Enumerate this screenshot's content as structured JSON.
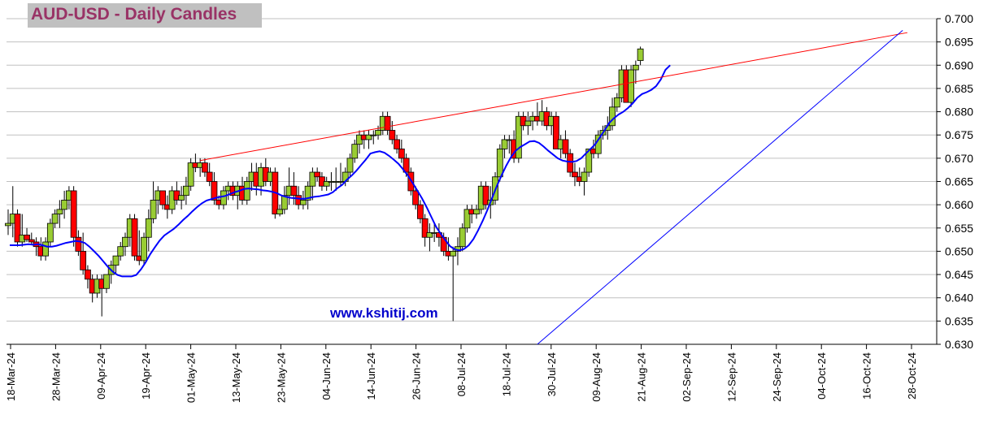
{
  "title": "AUD-USD - Daily Candles",
  "watermark": "www.kshitij.com",
  "colors": {
    "up_candle": "#99cc33",
    "down_candle": "#ff0000",
    "moving_average": "#0000ff",
    "resistance_line": "#ff0000",
    "support_line": "#0000ff",
    "grid": "#c0c0c0",
    "title_bg": "#c0c0c0",
    "title_text": "#993366"
  },
  "chart_data": {
    "type": "candlestick",
    "title": "AUD-USD - Daily Candles",
    "ylim": [
      0.63,
      0.7
    ],
    "y_ticks": [
      "0.630",
      "0.635",
      "0.640",
      "0.645",
      "0.650",
      "0.655",
      "0.660",
      "0.665",
      "0.670",
      "0.675",
      "0.680",
      "0.685",
      "0.690",
      "0.695",
      "0.700"
    ],
    "x_ticks": [
      "18-Mar-24",
      "28-Mar-24",
      "09-Apr-24",
      "19-Apr-24",
      "01-May-24",
      "13-May-24",
      "23-May-24",
      "04-Jun-24",
      "14-Jun-24",
      "26-Jun-24",
      "08-Jul-24",
      "18-Jul-24",
      "30-Jul-24",
      "09-Aug-24",
      "21-Aug-24",
      "02-Sep-24",
      "12-Sep-24",
      "24-Sep-24",
      "04-Oct-24",
      "16-Oct-24",
      "28-Oct-24"
    ],
    "grid": "horizontal",
    "candles": [
      {
        "o": 0.6555,
        "h": 0.659,
        "l": 0.6535,
        "c": 0.656
      },
      {
        "o": 0.656,
        "h": 0.664,
        "l": 0.653,
        "c": 0.658
      },
      {
        "o": 0.658,
        "h": 0.659,
        "l": 0.651,
        "c": 0.652
      },
      {
        "o": 0.652,
        "h": 0.658,
        "l": 0.651,
        "c": 0.6535
      },
      {
        "o": 0.6535,
        "h": 0.655,
        "l": 0.652,
        "c": 0.6525
      },
      {
        "o": 0.6525,
        "h": 0.654,
        "l": 0.6515,
        "c": 0.652
      },
      {
        "o": 0.652,
        "h": 0.653,
        "l": 0.649,
        "c": 0.651
      },
      {
        "o": 0.651,
        "h": 0.653,
        "l": 0.648,
        "c": 0.649
      },
      {
        "o": 0.649,
        "h": 0.653,
        "l": 0.648,
        "c": 0.652
      },
      {
        "o": 0.652,
        "h": 0.657,
        "l": 0.651,
        "c": 0.656
      },
      {
        "o": 0.656,
        "h": 0.659,
        "l": 0.655,
        "c": 0.658
      },
      {
        "o": 0.658,
        "h": 0.661,
        "l": 0.655,
        "c": 0.659
      },
      {
        "o": 0.659,
        "h": 0.663,
        "l": 0.657,
        "c": 0.661
      },
      {
        "o": 0.661,
        "h": 0.664,
        "l": 0.659,
        "c": 0.663
      },
      {
        "o": 0.663,
        "h": 0.664,
        "l": 0.651,
        "c": 0.653
      },
      {
        "o": 0.653,
        "h": 0.6545,
        "l": 0.649,
        "c": 0.65
      },
      {
        "o": 0.65,
        "h": 0.654,
        "l": 0.645,
        "c": 0.646
      },
      {
        "o": 0.646,
        "h": 0.647,
        "l": 0.642,
        "c": 0.644
      },
      {
        "o": 0.644,
        "h": 0.645,
        "l": 0.639,
        "c": 0.641
      },
      {
        "o": 0.641,
        "h": 0.645,
        "l": 0.64,
        "c": 0.644
      },
      {
        "o": 0.644,
        "h": 0.645,
        "l": 0.636,
        "c": 0.642
      },
      {
        "o": 0.642,
        "h": 0.645,
        "l": 0.641,
        "c": 0.645
      },
      {
        "o": 0.645,
        "h": 0.648,
        "l": 0.643,
        "c": 0.647
      },
      {
        "o": 0.647,
        "h": 0.649,
        "l": 0.645,
        "c": 0.649
      },
      {
        "o": 0.649,
        "h": 0.652,
        "l": 0.648,
        "c": 0.651
      },
      {
        "o": 0.651,
        "h": 0.654,
        "l": 0.649,
        "c": 0.653
      },
      {
        "o": 0.653,
        "h": 0.658,
        "l": 0.651,
        "c": 0.657
      },
      {
        "o": 0.657,
        "h": 0.658,
        "l": 0.648,
        "c": 0.649
      },
      {
        "o": 0.649,
        "h": 0.6545,
        "l": 0.647,
        "c": 0.648
      },
      {
        "o": 0.648,
        "h": 0.654,
        "l": 0.647,
        "c": 0.653
      },
      {
        "o": 0.653,
        "h": 0.659,
        "l": 0.65,
        "c": 0.657
      },
      {
        "o": 0.657,
        "h": 0.665,
        "l": 0.656,
        "c": 0.661
      },
      {
        "o": 0.661,
        "h": 0.664,
        "l": 0.658,
        "c": 0.663
      },
      {
        "o": 0.663,
        "h": 0.663,
        "l": 0.659,
        "c": 0.66
      },
      {
        "o": 0.66,
        "h": 0.662,
        "l": 0.657,
        "c": 0.659
      },
      {
        "o": 0.659,
        "h": 0.664,
        "l": 0.658,
        "c": 0.663
      },
      {
        "o": 0.663,
        "h": 0.665,
        "l": 0.66,
        "c": 0.661
      },
      {
        "o": 0.661,
        "h": 0.664,
        "l": 0.659,
        "c": 0.662
      },
      {
        "o": 0.662,
        "h": 0.666,
        "l": 0.66,
        "c": 0.664
      },
      {
        "o": 0.664,
        "h": 0.67,
        "l": 0.663,
        "c": 0.669
      },
      {
        "o": 0.669,
        "h": 0.671,
        "l": 0.667,
        "c": 0.668
      },
      {
        "o": 0.668,
        "h": 0.67,
        "l": 0.666,
        "c": 0.669
      },
      {
        "o": 0.669,
        "h": 0.67,
        "l": 0.666,
        "c": 0.667
      },
      {
        "o": 0.667,
        "h": 0.669,
        "l": 0.664,
        "c": 0.665
      },
      {
        "o": 0.665,
        "h": 0.667,
        "l": 0.66,
        "c": 0.661
      },
      {
        "o": 0.661,
        "h": 0.662,
        "l": 0.659,
        "c": 0.66
      },
      {
        "o": 0.66,
        "h": 0.664,
        "l": 0.659,
        "c": 0.663
      },
      {
        "o": 0.663,
        "h": 0.665,
        "l": 0.661,
        "c": 0.664
      },
      {
        "o": 0.664,
        "h": 0.665,
        "l": 0.661,
        "c": 0.662
      },
      {
        "o": 0.662,
        "h": 0.665,
        "l": 0.659,
        "c": 0.664
      },
      {
        "o": 0.664,
        "h": 0.666,
        "l": 0.66,
        "c": 0.661
      },
      {
        "o": 0.661,
        "h": 0.666,
        "l": 0.66,
        "c": 0.665
      },
      {
        "o": 0.665,
        "h": 0.669,
        "l": 0.663,
        "c": 0.667
      },
      {
        "o": 0.667,
        "h": 0.669,
        "l": 0.662,
        "c": 0.664
      },
      {
        "o": 0.664,
        "h": 0.669,
        "l": 0.662,
        "c": 0.668
      },
      {
        "o": 0.668,
        "h": 0.67,
        "l": 0.664,
        "c": 0.665
      },
      {
        "o": 0.665,
        "h": 0.668,
        "l": 0.664,
        "c": 0.667
      },
      {
        "o": 0.667,
        "h": 0.668,
        "l": 0.657,
        "c": 0.658
      },
      {
        "o": 0.658,
        "h": 0.66,
        "l": 0.6575,
        "c": 0.659
      },
      {
        "o": 0.659,
        "h": 0.664,
        "l": 0.658,
        "c": 0.662
      },
      {
        "o": 0.662,
        "h": 0.668,
        "l": 0.66,
        "c": 0.664
      },
      {
        "o": 0.664,
        "h": 0.667,
        "l": 0.66,
        "c": 0.662
      },
      {
        "o": 0.662,
        "h": 0.664,
        "l": 0.659,
        "c": 0.66
      },
      {
        "o": 0.66,
        "h": 0.663,
        "l": 0.659,
        "c": 0.661
      },
      {
        "o": 0.661,
        "h": 0.665,
        "l": 0.659,
        "c": 0.664
      },
      {
        "o": 0.664,
        "h": 0.668,
        "l": 0.661,
        "c": 0.667
      },
      {
        "o": 0.667,
        "h": 0.668,
        "l": 0.665,
        "c": 0.666
      },
      {
        "o": 0.666,
        "h": 0.667,
        "l": 0.663,
        "c": 0.664
      },
      {
        "o": 0.664,
        "h": 0.666,
        "l": 0.663,
        "c": 0.665
      },
      {
        "o": 0.665,
        "h": 0.667,
        "l": 0.663,
        "c": 0.665
      },
      {
        "o": 0.665,
        "h": 0.668,
        "l": 0.663,
        "c": 0.665
      },
      {
        "o": 0.665,
        "h": 0.669,
        "l": 0.664,
        "c": 0.665
      },
      {
        "o": 0.665,
        "h": 0.668,
        "l": 0.664,
        "c": 0.667
      },
      {
        "o": 0.667,
        "h": 0.671,
        "l": 0.666,
        "c": 0.67
      },
      {
        "o": 0.67,
        "h": 0.674,
        "l": 0.669,
        "c": 0.673
      },
      {
        "o": 0.673,
        "h": 0.676,
        "l": 0.671,
        "c": 0.675
      },
      {
        "o": 0.675,
        "h": 0.676,
        "l": 0.672,
        "c": 0.674
      },
      {
        "o": 0.674,
        "h": 0.676,
        "l": 0.672,
        "c": 0.675
      },
      {
        "o": 0.675,
        "h": 0.676,
        "l": 0.673,
        "c": 0.675
      },
      {
        "o": 0.675,
        "h": 0.677,
        "l": 0.674,
        "c": 0.676
      },
      {
        "o": 0.676,
        "h": 0.68,
        "l": 0.675,
        "c": 0.679
      },
      {
        "o": 0.679,
        "h": 0.68,
        "l": 0.675,
        "c": 0.676
      },
      {
        "o": 0.676,
        "h": 0.678,
        "l": 0.673,
        "c": 0.674
      },
      {
        "o": 0.674,
        "h": 0.675,
        "l": 0.671,
        "c": 0.672
      },
      {
        "o": 0.672,
        "h": 0.674,
        "l": 0.669,
        "c": 0.67
      },
      {
        "o": 0.67,
        "h": 0.671,
        "l": 0.666,
        "c": 0.667
      },
      {
        "o": 0.667,
        "h": 0.668,
        "l": 0.662,
        "c": 0.663
      },
      {
        "o": 0.663,
        "h": 0.664,
        "l": 0.659,
        "c": 0.66
      },
      {
        "o": 0.66,
        "h": 0.661,
        "l": 0.656,
        "c": 0.657
      },
      {
        "o": 0.657,
        "h": 0.658,
        "l": 0.651,
        "c": 0.653
      },
      {
        "o": 0.653,
        "h": 0.656,
        "l": 0.65,
        "c": 0.654
      },
      {
        "o": 0.654,
        "h": 0.656,
        "l": 0.652,
        "c": 0.654
      },
      {
        "o": 0.654,
        "h": 0.656,
        "l": 0.651,
        "c": 0.653
      },
      {
        "o": 0.653,
        "h": 0.654,
        "l": 0.649,
        "c": 0.65
      },
      {
        "o": 0.65,
        "h": 0.653,
        "l": 0.648,
        "c": 0.649
      },
      {
        "o": 0.649,
        "h": 0.651,
        "l": 0.635,
        "c": 0.65
      },
      {
        "o": 0.65,
        "h": 0.653,
        "l": 0.647,
        "c": 0.651
      },
      {
        "o": 0.651,
        "h": 0.656,
        "l": 0.65,
        "c": 0.655
      },
      {
        "o": 0.655,
        "h": 0.66,
        "l": 0.654,
        "c": 0.659
      },
      {
        "o": 0.659,
        "h": 0.66,
        "l": 0.656,
        "c": 0.658
      },
      {
        "o": 0.658,
        "h": 0.66,
        "l": 0.657,
        "c": 0.659
      },
      {
        "o": 0.659,
        "h": 0.665,
        "l": 0.658,
        "c": 0.664
      },
      {
        "o": 0.664,
        "h": 0.665,
        "l": 0.659,
        "c": 0.66
      },
      {
        "o": 0.66,
        "h": 0.664,
        "l": 0.657,
        "c": 0.661
      },
      {
        "o": 0.661,
        "h": 0.667,
        "l": 0.66,
        "c": 0.666
      },
      {
        "o": 0.666,
        "h": 0.673,
        "l": 0.665,
        "c": 0.672
      },
      {
        "o": 0.672,
        "h": 0.675,
        "l": 0.67,
        "c": 0.674
      },
      {
        "o": 0.674,
        "h": 0.675,
        "l": 0.671,
        "c": 0.674
      },
      {
        "o": 0.674,
        "h": 0.676,
        "l": 0.669,
        "c": 0.67
      },
      {
        "o": 0.67,
        "h": 0.68,
        "l": 0.669,
        "c": 0.679
      },
      {
        "o": 0.679,
        "h": 0.68,
        "l": 0.676,
        "c": 0.677
      },
      {
        "o": 0.677,
        "h": 0.68,
        "l": 0.675,
        "c": 0.678
      },
      {
        "o": 0.678,
        "h": 0.68,
        "l": 0.676,
        "c": 0.679
      },
      {
        "o": 0.679,
        "h": 0.682,
        "l": 0.677,
        "c": 0.678
      },
      {
        "o": 0.678,
        "h": 0.6825,
        "l": 0.677,
        "c": 0.68
      },
      {
        "o": 0.68,
        "h": 0.681,
        "l": 0.676,
        "c": 0.677
      },
      {
        "o": 0.677,
        "h": 0.68,
        "l": 0.675,
        "c": 0.679
      },
      {
        "o": 0.679,
        "h": 0.68,
        "l": 0.672,
        "c": 0.672
      },
      {
        "o": 0.672,
        "h": 0.675,
        "l": 0.67,
        "c": 0.674
      },
      {
        "o": 0.674,
        "h": 0.676,
        "l": 0.67,
        "c": 0.671
      },
      {
        "o": 0.671,
        "h": 0.672,
        "l": 0.666,
        "c": 0.667
      },
      {
        "o": 0.667,
        "h": 0.669,
        "l": 0.664,
        "c": 0.666
      },
      {
        "o": 0.666,
        "h": 0.668,
        "l": 0.664,
        "c": 0.665
      },
      {
        "o": 0.665,
        "h": 0.668,
        "l": 0.662,
        "c": 0.667
      },
      {
        "o": 0.667,
        "h": 0.672,
        "l": 0.666,
        "c": 0.672
      },
      {
        "o": 0.672,
        "h": 0.674,
        "l": 0.67,
        "c": 0.671
      },
      {
        "o": 0.671,
        "h": 0.676,
        "l": 0.67,
        "c": 0.675
      },
      {
        "o": 0.675,
        "h": 0.677,
        "l": 0.674,
        "c": 0.676
      },
      {
        "o": 0.676,
        "h": 0.679,
        "l": 0.674,
        "c": 0.677
      },
      {
        "o": 0.677,
        "h": 0.683,
        "l": 0.676,
        "c": 0.681
      },
      {
        "o": 0.681,
        "h": 0.684,
        "l": 0.68,
        "c": 0.683
      },
      {
        "o": 0.683,
        "h": 0.69,
        "l": 0.682,
        "c": 0.689
      },
      {
        "o": 0.689,
        "h": 0.69,
        "l": 0.682,
        "c": 0.682
      },
      {
        "o": 0.682,
        "h": 0.69,
        "l": 0.681,
        "c": 0.689
      },
      {
        "o": 0.689,
        "h": 0.691,
        "l": 0.686,
        "c": 0.69
      },
      {
        "o": 0.691,
        "h": 0.694,
        "l": 0.69,
        "c": 0.6935
      }
    ],
    "lines": [
      {
        "name": "",
        "color": "#ff0000",
        "from_index": 41,
        "from_value": 0.6695,
        "to_index": 192,
        "to_value": 0.697
      },
      {
        "name": "",
        "color": "#0000ff",
        "from_index": 113,
        "from_value": 0.63,
        "to_index": 191,
        "to_value": 0.6975
      }
    ],
    "moving_average": [
      0.6513,
      0.6513,
      0.6513,
      0.6514,
      0.6515,
      0.6514,
      0.6515,
      0.6513,
      0.651,
      0.651,
      0.6512,
      0.6515,
      0.6518,
      0.652,
      0.6522,
      0.6521,
      0.6518,
      0.651,
      0.65,
      0.649,
      0.6478,
      0.6466,
      0.6456,
      0.6449,
      0.6446,
      0.6446,
      0.6446,
      0.6449,
      0.6461,
      0.6476,
      0.6494,
      0.6509,
      0.6523,
      0.6534,
      0.6541,
      0.6548,
      0.6557,
      0.6567,
      0.6576,
      0.6586,
      0.6595,
      0.6603,
      0.6609,
      0.6612,
      0.6615,
      0.6617,
      0.6619,
      0.6623,
      0.6627,
      0.663,
      0.6634,
      0.6635,
      0.6634,
      0.6633,
      0.6631,
      0.663,
      0.6628,
      0.6625,
      0.662,
      0.6617,
      0.6615,
      0.6614,
      0.6613,
      0.6613,
      0.6615,
      0.6617,
      0.6618,
      0.662,
      0.6622,
      0.6627,
      0.6636,
      0.6643,
      0.6654,
      0.6663,
      0.6673,
      0.6685,
      0.6697,
      0.671,
      0.6713,
      0.6715,
      0.6712,
      0.6705,
      0.6697,
      0.6688,
      0.6676,
      0.6663,
      0.6647,
      0.6631,
      0.6614,
      0.6595,
      0.6574,
      0.6553,
      0.6538,
      0.6524,
      0.6511,
      0.6504,
      0.6502,
      0.6505,
      0.6513,
      0.6526,
      0.6545,
      0.6566,
      0.6589,
      0.6615,
      0.664,
      0.6663,
      0.6684,
      0.6702,
      0.6716,
      0.6724,
      0.673,
      0.6736,
      0.6737,
      0.6733,
      0.6725,
      0.6716,
      0.6708,
      0.67,
      0.6695,
      0.6693,
      0.6692,
      0.6694,
      0.67,
      0.671,
      0.672,
      0.673,
      0.6745,
      0.676,
      0.6776,
      0.6786,
      0.6794,
      0.68,
      0.6808,
      0.6818,
      0.683,
      0.6838,
      0.6842,
      0.6847,
      0.6855,
      0.6869,
      0.689,
      0.69
    ]
  }
}
